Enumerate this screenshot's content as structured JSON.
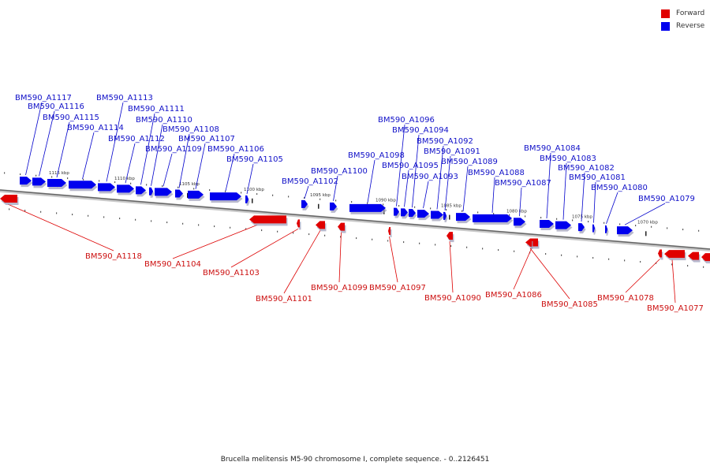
{
  "legend": {
    "forward_label": "Forward",
    "reverse_label": "Reverse",
    "forward_color": "#e00000",
    "reverse_color": "#0000ee"
  },
  "caption": "Brucella melitensis M5-90 chromosome I, complete sequence. - 0..2126451",
  "kbp_ticks": [
    "1115 kbp",
    "1110 kbp",
    "1105 kbp",
    "1100 kbp",
    "1095 kbp",
    "1090 kbp",
    "1085 kbp",
    "1080 kbp",
    "1075 kbp",
    "1070 kbp"
  ],
  "reverse_genes": [
    "BM590_A1117",
    "BM590_A1116",
    "BM590_A1115",
    "BM590_A1114",
    "BM590_A1113",
    "BM590_A1112",
    "BM590_A1111",
    "BM590_A1110",
    "BM590_A1109",
    "BM590_A1108",
    "BM590_A1107",
    "BM590_A1106",
    "BM590_A1105",
    "BM590_A1102",
    "BM590_A1100",
    "BM590_A1098",
    "BM590_A1096",
    "BM590_A1095",
    "BM590_A1094",
    "BM590_A1093",
    "BM590_A1092",
    "BM590_A1091",
    "BM590_A1089",
    "BM590_A1088",
    "BM590_A1087",
    "BM590_A1084",
    "BM590_A1083",
    "BM590_A1082",
    "BM590_A1081",
    "BM590_A1080",
    "BM590_A1079"
  ],
  "forward_genes": [
    "BM590_A1118",
    "BM590_A1104",
    "BM590_A1103",
    "BM590_A1101",
    "BM590_A1099",
    "BM590_A1097",
    "BM590_A1090",
    "BM590_A1086",
    "BM590_A1085",
    "BM590_A1078",
    "BM590_A1077"
  ]
}
